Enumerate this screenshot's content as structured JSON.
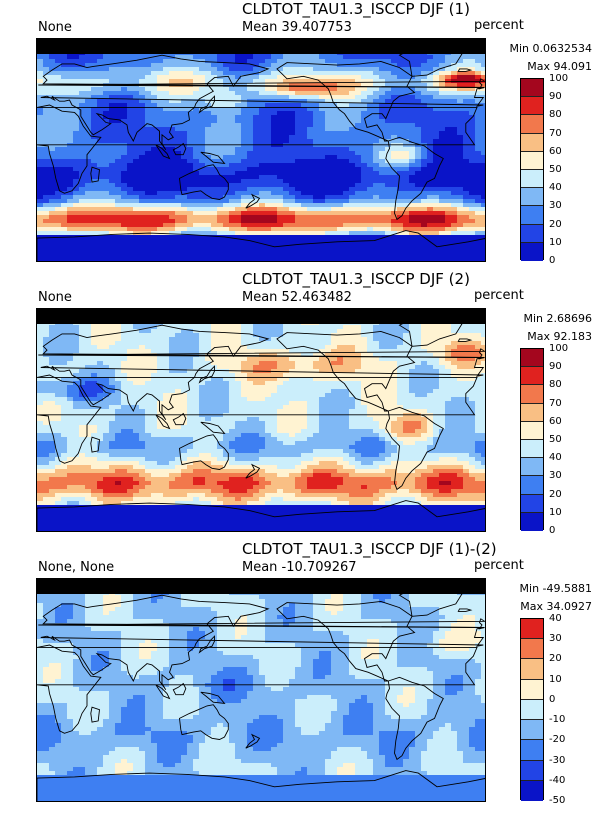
{
  "colors": {
    "scale": [
      "#0a14c8",
      "#2244e6",
      "#3e7ff2",
      "#7fb8f5",
      "#cbeefb",
      "#fff3d2",
      "#f9bf84",
      "#f2784c",
      "#e0221f",
      "#a4061e"
    ],
    "land_outline": "#000000",
    "missing_band": "#000000"
  },
  "panels": [
    {
      "title": "CLDTOT_TAU1.3_ISCCP DJF (1)",
      "left_label": "None",
      "mean": "Mean 39.407753",
      "units": "percent",
      "min": "Min 0.0632534",
      "max": "Max 94.091",
      "levels": [
        "0",
        "10",
        "20",
        "30",
        "40",
        "50",
        "60",
        "70",
        "80",
        "90",
        "100"
      ],
      "pattern": "low"
    },
    {
      "title": "CLDTOT_TAU1.3_ISCCP DJF (2)",
      "left_label": "None",
      "mean": "Mean 52.463482",
      "units": "percent",
      "min": "Min 2.68696",
      "max": "Max 92.183",
      "levels": [
        "0",
        "10",
        "20",
        "30",
        "40",
        "50",
        "60",
        "70",
        "80",
        "90",
        "100"
      ],
      "pattern": "high"
    },
    {
      "title": "CLDTOT_TAU1.3_ISCCP DJF (1)-(2)",
      "left_label": "None, None",
      "mean": "Mean -10.709267",
      "units": "percent",
      "min": "Min -49.5881",
      "max": "Max 34.0927",
      "levels": [
        "-50",
        "-40",
        "-30",
        "-20",
        "-10",
        "0",
        "10",
        "20",
        "30",
        "40"
      ],
      "pattern": "diff"
    }
  ]
}
